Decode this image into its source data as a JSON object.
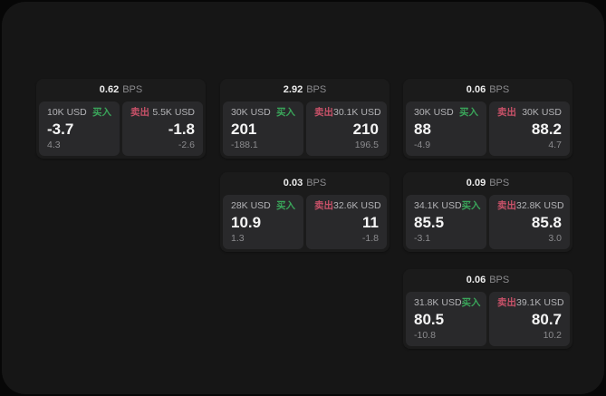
{
  "app": {
    "unit_label": "BPS",
    "buy_label": "买入",
    "sell_label": "卖出",
    "colors": {
      "backdrop": "#070707",
      "window_bg": "#161616",
      "card_bg": "#1b1b1b",
      "panel_bg": "#29292b",
      "buy_accent": "#3aa55a",
      "sell_accent": "#c75168",
      "price_text": "#f5f5f5",
      "muted_text": "#8b8b8e"
    }
  },
  "cards": [
    {
      "bps": "0.62",
      "buy": {
        "amount": "10K USD",
        "price": "-3.7",
        "delta": "4.3"
      },
      "sell": {
        "amount": "5.5K USD",
        "price": "-1.8",
        "delta": "-2.6"
      }
    },
    {
      "bps": "2.92",
      "buy": {
        "amount": "30K USD",
        "price": "201",
        "delta": "-188.1"
      },
      "sell": {
        "amount": "30.1K USD",
        "price": "210",
        "delta": "196.5"
      }
    },
    {
      "bps": "0.06",
      "buy": {
        "amount": "30K USD",
        "price": "88",
        "delta": "-4.9"
      },
      "sell": {
        "amount": "30K USD",
        "price": "88.2",
        "delta": "4.7"
      }
    },
    {
      "bps": "0.03",
      "buy": {
        "amount": "28K USD",
        "price": "10.9",
        "delta": "1.3"
      },
      "sell": {
        "amount": "32.6K USD",
        "price": "11",
        "delta": "-1.8"
      }
    },
    {
      "bps": "0.09",
      "buy": {
        "amount": "34.1K USD",
        "price": "85.5",
        "delta": "-3.1"
      },
      "sell": {
        "amount": "32.8K USD",
        "price": "85.8",
        "delta": "3.0"
      }
    },
    {
      "bps": "0.06",
      "buy": {
        "amount": "31.8K USD",
        "price": "80.5",
        "delta": "-10.8"
      },
      "sell": {
        "amount": "39.1K USD",
        "price": "80.7",
        "delta": "10.2"
      }
    }
  ]
}
